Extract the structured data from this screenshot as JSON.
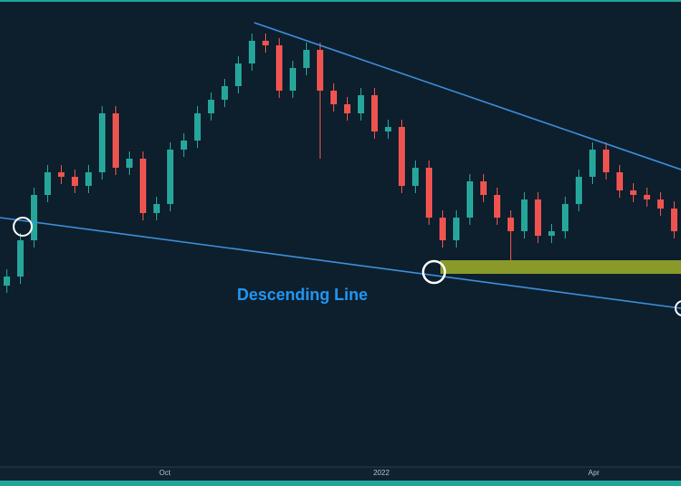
{
  "chart_data": {
    "type": "candlestick",
    "annotation": "Descending Line",
    "x_labels": [
      {
        "index": 11.6,
        "label": "Oct"
      },
      {
        "index": 27.5,
        "label": "2022"
      },
      {
        "index": 43.1,
        "label": "Apr"
      }
    ],
    "open": [
      200,
      210,
      250,
      300,
      325,
      320,
      310,
      325,
      390,
      330,
      340,
      280,
      290,
      350,
      360,
      390,
      405,
      420,
      445,
      470,
      465,
      415,
      440,
      460,
      415,
      400,
      390,
      410,
      370,
      375,
      310,
      330,
      275,
      250,
      275,
      315,
      300,
      275,
      260,
      295,
      255,
      260,
      290,
      320,
      350,
      325,
      305,
      300,
      295,
      285
    ],
    "high": [
      218,
      258,
      308,
      333,
      333,
      328,
      333,
      398,
      398,
      348,
      348,
      298,
      358,
      368,
      398,
      413,
      428,
      453,
      478,
      478,
      473,
      448,
      468,
      468,
      423,
      408,
      418,
      418,
      383,
      383,
      338,
      338,
      283,
      283,
      323,
      323,
      308,
      283,
      303,
      303,
      268,
      298,
      328,
      358,
      358,
      333,
      313,
      308,
      303,
      293
    ],
    "low": [
      192,
      202,
      242,
      292,
      312,
      302,
      302,
      317,
      322,
      322,
      272,
      272,
      282,
      342,
      352,
      382,
      397,
      412,
      437,
      457,
      407,
      407,
      432,
      340,
      392,
      382,
      382,
      362,
      362,
      302,
      302,
      267,
      242,
      242,
      267,
      292,
      267,
      228,
      252,
      247,
      247,
      252,
      282,
      312,
      317,
      297,
      292,
      287,
      277,
      252
    ],
    "close": [
      210,
      250,
      300,
      325,
      320,
      310,
      325,
      390,
      330,
      340,
      280,
      290,
      350,
      360,
      390,
      405,
      420,
      445,
      470,
      465,
      415,
      440,
      460,
      415,
      400,
      390,
      410,
      370,
      375,
      310,
      330,
      275,
      250,
      275,
      315,
      300,
      275,
      260,
      295,
      255,
      260,
      290,
      320,
      350,
      325,
      305,
      300,
      295,
      285,
      260
    ],
    "up_color": "#26a69a",
    "down_color": "#ef5350",
    "ylim": [
      0,
      515
    ]
  }
}
